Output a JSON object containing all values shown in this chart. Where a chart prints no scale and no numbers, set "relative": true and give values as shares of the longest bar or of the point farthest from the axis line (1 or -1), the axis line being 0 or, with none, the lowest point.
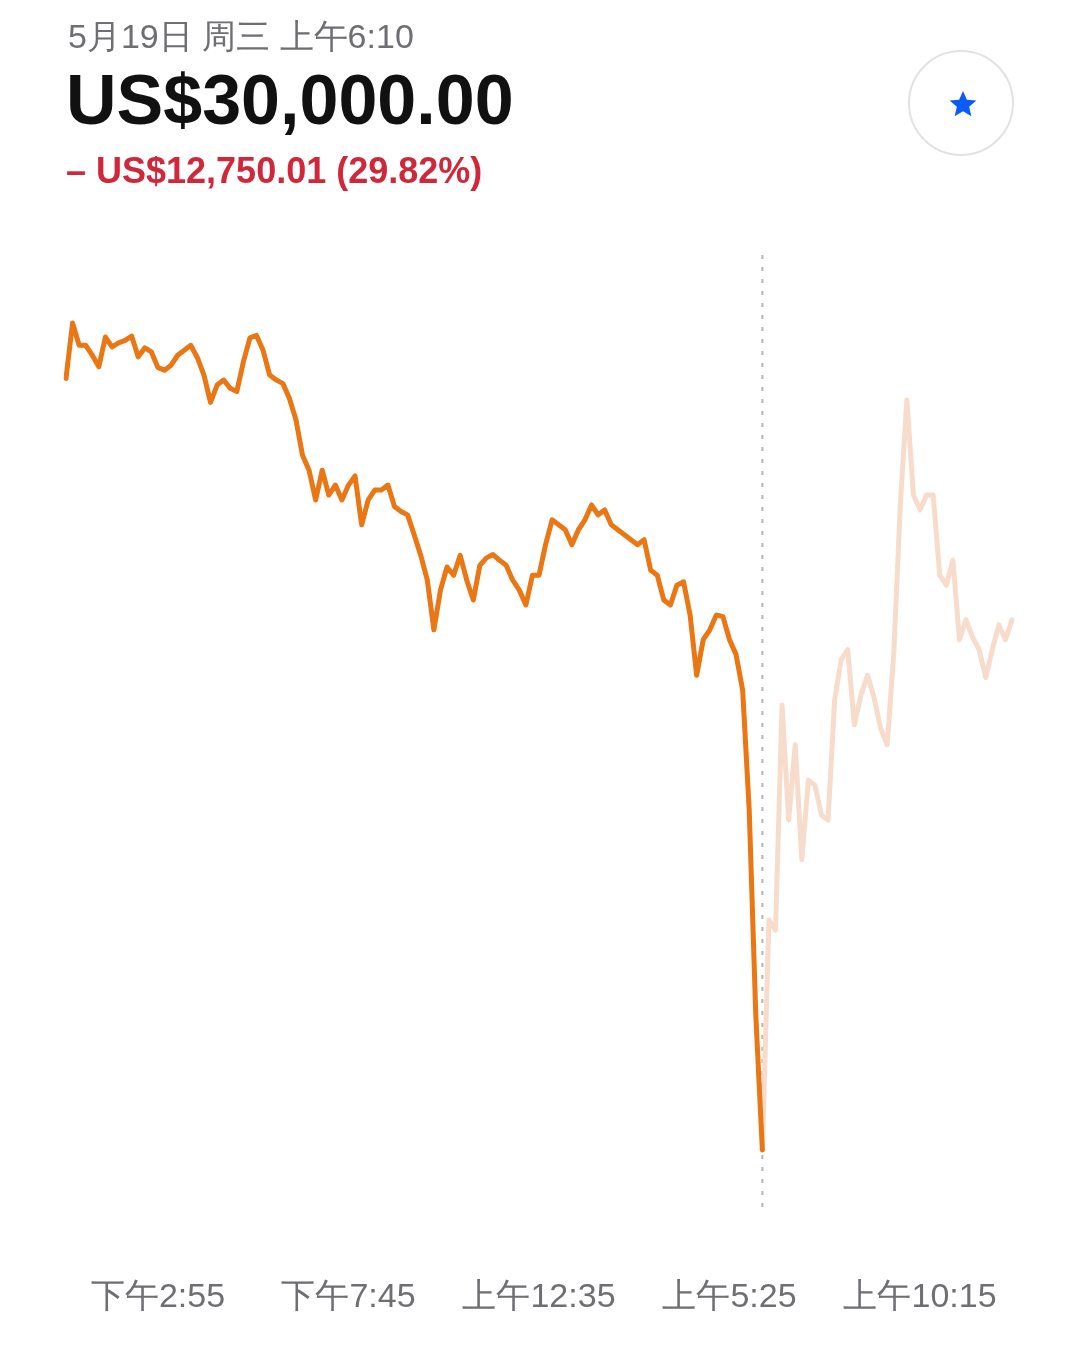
{
  "chart_data": {
    "type": "line",
    "title": "US$30,000.00",
    "subtitle": "5月19日 周三 上午6:10",
    "annotations": [
      "– US$12,750.01 (29.82%)"
    ],
    "relative": true,
    "grid": false,
    "legend": false,
    "categories": [
      null,
      null,
      null,
      null,
      null,
      null,
      null,
      null,
      null,
      null,
      null,
      null,
      null,
      null,
      "下午2:55",
      null,
      null,
      null,
      null,
      null,
      null,
      null,
      null,
      null,
      null,
      null,
      null,
      null,
      null,
      null,
      null,
      null,
      null,
      null,
      null,
      null,
      null,
      null,
      null,
      null,
      null,
      null,
      null,
      "下午7:45",
      null,
      null,
      null,
      null,
      null,
      null,
      null,
      null,
      null,
      null,
      null,
      null,
      null,
      null,
      null,
      null,
      null,
      null,
      null,
      null,
      null,
      null,
      null,
      null,
      null,
      null,
      null,
      null,
      "上午12:35",
      null,
      null,
      null,
      null,
      null,
      null,
      null,
      null,
      null,
      null,
      null,
      null,
      null,
      null,
      null,
      null,
      null,
      null,
      null,
      null,
      null,
      null,
      null,
      null,
      null,
      null,
      null,
      null,
      "上午5:25",
      null,
      null,
      null,
      null,
      null,
      null,
      null,
      null,
      null,
      null,
      null,
      null,
      null,
      null,
      null,
      null,
      null,
      null,
      null,
      null,
      null,
      null,
      null,
      null,
      null,
      null,
      null,
      null,
      "上午10:15",
      null,
      null,
      null,
      null,
      null,
      null,
      null,
      null,
      null,
      null,
      null,
      null,
      null,
      null
    ],
    "series": [
      {
        "color": "#ea7614",
        "values": [
          0.933,
          1.0,
          0.973,
          0.973,
          0.961,
          0.947,
          0.983,
          0.971,
          0.976,
          0.979,
          0.984,
          0.959,
          0.97,
          0.965,
          0.946,
          0.943,
          0.949,
          0.961,
          0.967,
          0.973,
          0.958,
          0.937,
          0.904,
          0.925,
          0.931,
          0.921,
          0.917,
          0.953,
          0.982,
          0.985,
          0.967,
          0.937,
          0.931,
          0.927,
          0.909,
          0.883,
          0.84,
          0.822,
          0.786,
          0.822,
          0.792,
          0.804,
          0.786,
          0.804,
          0.815,
          0.756,
          0.786,
          0.798,
          0.798,
          0.804,
          0.778,
          0.772,
          0.768,
          0.744,
          0.719,
          0.689,
          0.629,
          0.677,
          0.705,
          0.695,
          0.719,
          0.689,
          0.665,
          0.707,
          0.716,
          0.72,
          0.713,
          0.707,
          0.689,
          0.677,
          0.659,
          0.695,
          0.695,
          0.732,
          0.762,
          0.756,
          0.75,
          0.732,
          0.75,
          0.762,
          0.78,
          0.768,
          0.774,
          0.756,
          0.75,
          0.744,
          0.738,
          0.732,
          0.738,
          0.701,
          0.695,
          0.665,
          0.659,
          0.683,
          0.687,
          0.647,
          0.574,
          0.617,
          0.629,
          0.647,
          0.645,
          0.617,
          0.599,
          0.556,
          0.411,
          0.163,
          0.0,
          null,
          null,
          null,
          null,
          null,
          null,
          null,
          null,
          null,
          null,
          null,
          null,
          null,
          null,
          null,
          null,
          null,
          null,
          null,
          null,
          null,
          null,
          null,
          null,
          null,
          null,
          null,
          null,
          null,
          null,
          null,
          null,
          null,
          null,
          null,
          null,
          null,
          null
        ]
      },
      {
        "color": "#f8dccb",
        "values": [
          null,
          null,
          null,
          null,
          null,
          null,
          null,
          null,
          null,
          null,
          null,
          null,
          null,
          null,
          null,
          null,
          null,
          null,
          null,
          null,
          null,
          null,
          null,
          null,
          null,
          null,
          null,
          null,
          null,
          null,
          null,
          null,
          null,
          null,
          null,
          null,
          null,
          null,
          null,
          null,
          null,
          null,
          null,
          null,
          null,
          null,
          null,
          null,
          null,
          null,
          null,
          null,
          null,
          null,
          null,
          null,
          null,
          null,
          null,
          null,
          null,
          null,
          null,
          null,
          null,
          null,
          null,
          null,
          null,
          null,
          null,
          null,
          null,
          null,
          null,
          null,
          null,
          null,
          null,
          null,
          null,
          null,
          null,
          null,
          null,
          null,
          null,
          null,
          null,
          null,
          null,
          null,
          null,
          null,
          null,
          null,
          null,
          null,
          null,
          null,
          null,
          null,
          null,
          null,
          null,
          null,
          0.0,
          0.278,
          0.266,
          0.538,
          0.399,
          0.49,
          0.351,
          0.447,
          0.441,
          0.405,
          0.399,
          0.544,
          0.593,
          0.605,
          0.514,
          0.55,
          0.574,
          0.547,
          0.51,
          0.49,
          0.6,
          0.78,
          0.907,
          0.792,
          0.774,
          0.792,
          0.792,
          0.695,
          0.683,
          0.713,
          0.617,
          0.641,
          0.62,
          0.605,
          0.571,
          0.605,
          0.635,
          0.617,
          0.641
        ]
      }
    ]
  }
}
